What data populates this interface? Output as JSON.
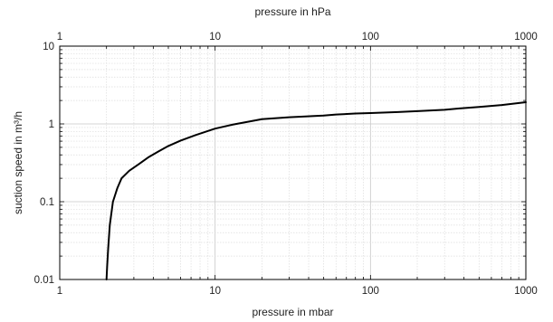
{
  "chart_data": {
    "type": "line",
    "x_scale": "log",
    "y_scale": "log",
    "xlim": [
      1,
      1000
    ],
    "ylim": [
      0.01,
      10
    ],
    "grid": true,
    "xlabel_bottom": "pressure in mbar",
    "xlabel_top": "pressure in hPa",
    "ylabel": "suction speed in m³/h",
    "x_ticks": [
      {
        "value": 1,
        "label": "1"
      },
      {
        "value": 10,
        "label": "10"
      },
      {
        "value": 100,
        "label": "100"
      },
      {
        "value": 1000,
        "label": "1000"
      }
    ],
    "y_ticks": [
      {
        "value": 0.01,
        "label": "0.01"
      },
      {
        "value": 0.1,
        "label": "0.1"
      },
      {
        "value": 1,
        "label": "1"
      },
      {
        "value": 10,
        "label": "10"
      }
    ],
    "series": [
      {
        "color": "#000000",
        "x": [
          2.0,
          2.02,
          2.05,
          2.1,
          2.2,
          2.35,
          2.5,
          2.8,
          3.2,
          3.7,
          4.3,
          5.0,
          6.0,
          7.5,
          10,
          13,
          20,
          30,
          50,
          60,
          80,
          100,
          150,
          200,
          300,
          400,
          500,
          700,
          1000
        ],
        "y": [
          0.01,
          0.015,
          0.025,
          0.05,
          0.1,
          0.15,
          0.2,
          0.25,
          0.3,
          0.37,
          0.44,
          0.52,
          0.61,
          0.72,
          0.87,
          0.98,
          1.15,
          1.22,
          1.28,
          1.32,
          1.36,
          1.38,
          1.42,
          1.46,
          1.52,
          1.6,
          1.65,
          1.75,
          1.9
        ]
      }
    ]
  }
}
